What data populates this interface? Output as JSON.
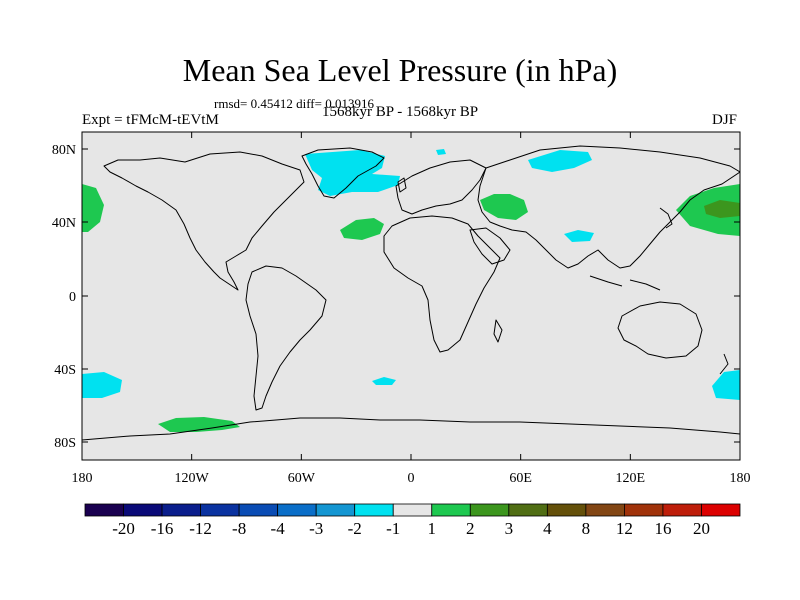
{
  "header": {
    "title": "Mean Sea Level Pressure (in hPa)",
    "stats": "rmsd= 0.45412 diff= 0.013916",
    "experiment": "Expt = tFMcM-tEVtM",
    "period": "1568kyr BP - 1568kyr BP",
    "season": "DJF"
  },
  "map": {
    "background_color": "#e6e6e6",
    "lat_labels": [
      "80N",
      "40N",
      "0",
      "40S",
      "80S"
    ],
    "lon_labels": [
      "180",
      "120W",
      "60W",
      "0",
      "60E",
      "120E",
      "180"
    ]
  },
  "colorbar": {
    "labels": [
      "-20",
      "-16",
      "-12",
      "-8",
      "-4",
      "-3",
      "-2",
      "-1",
      "1",
      "2",
      "3",
      "4",
      "8",
      "12",
      "16",
      "20"
    ],
    "colors": [
      "#1a0050",
      "#0a0a78",
      "#0a1e8c",
      "#0a32a0",
      "#0a4cb4",
      "#0a6ec8",
      "#1496d2",
      "#00e1f0",
      "#e6e6e6",
      "#1ec850",
      "#3c961e",
      "#506e14",
      "#64500a",
      "#824614",
      "#a0320a",
      "#be1e0a",
      "#dc0000"
    ]
  }
}
